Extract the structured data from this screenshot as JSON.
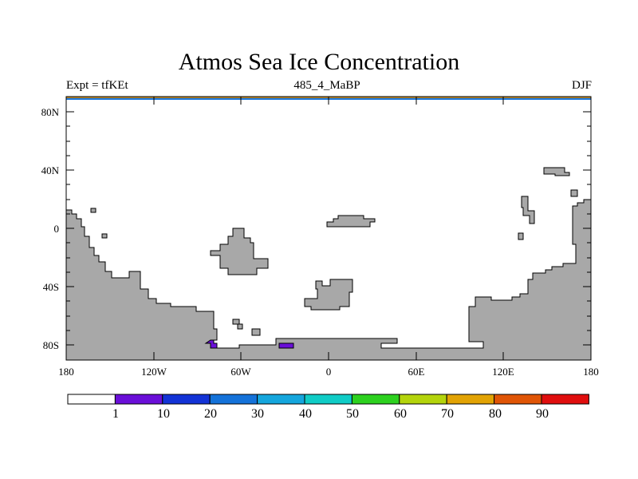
{
  "title": "Atmos Sea Ice Concentration",
  "left_label": "Expt = tfKEt",
  "center_label": "485_4_MaBP",
  "right_label": "DJF",
  "y_ticks": [
    "80N",
    "40N",
    "0",
    "40S",
    "80S"
  ],
  "x_ticks": [
    "180",
    "120W",
    "60W",
    "0",
    "60E",
    "120E",
    "180"
  ],
  "colorbar": {
    "colors": [
      "#ffffff",
      "#6a0fd8",
      "#1333d6",
      "#1472d9",
      "#15a6dd",
      "#10ccc6",
      "#2dd11f",
      "#b4d40c",
      "#e2a304",
      "#e05506",
      "#e00e0e"
    ],
    "labels": [
      "1",
      "10",
      "20",
      "30",
      "40",
      "50",
      "60",
      "70",
      "80",
      "90"
    ]
  },
  "colors": {
    "land": "#a8a8a8",
    "ice_high": "#6a0fd8",
    "coast": "#000000"
  }
}
